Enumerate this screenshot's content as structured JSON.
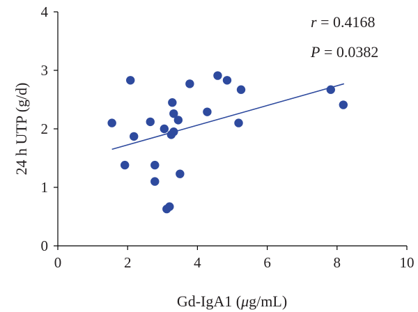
{
  "chart_data": {
    "type": "scatter",
    "xlabel_main": "Gd-IgA1 (",
    "xlabel_mu": "μ",
    "xlabel_rest": "g/mL)",
    "ylabel": "24 h UTP (g/d)",
    "xlim": [
      0,
      10
    ],
    "ylim": [
      0,
      4
    ],
    "xticks": [
      "0",
      "2",
      "4",
      "6",
      "8",
      "10"
    ],
    "yticks": [
      "0",
      "1",
      "2",
      "3",
      "4"
    ],
    "grid": false,
    "annotations": {
      "r_label": "r",
      "r_value": " = 0.4168",
      "p_label": "P",
      "p_value": " = 0.0382"
    },
    "points": [
      {
        "x": 1.55,
        "y": 2.1
      },
      {
        "x": 1.92,
        "y": 1.38
      },
      {
        "x": 2.08,
        "y": 2.83
      },
      {
        "x": 2.18,
        "y": 1.87
      },
      {
        "x": 2.65,
        "y": 2.12
      },
      {
        "x": 2.78,
        "y": 1.38
      },
      {
        "x": 2.78,
        "y": 1.1
      },
      {
        "x": 3.05,
        "y": 2.0
      },
      {
        "x": 3.12,
        "y": 0.63
      },
      {
        "x": 3.2,
        "y": 0.67
      },
      {
        "x": 3.25,
        "y": 1.9
      },
      {
        "x": 3.28,
        "y": 2.45
      },
      {
        "x": 3.32,
        "y": 1.95
      },
      {
        "x": 3.32,
        "y": 2.26
      },
      {
        "x": 3.45,
        "y": 2.15
      },
      {
        "x": 3.5,
        "y": 1.23
      },
      {
        "x": 3.78,
        "y": 2.77
      },
      {
        "x": 4.28,
        "y": 2.29
      },
      {
        "x": 4.58,
        "y": 2.91
      },
      {
        "x": 4.85,
        "y": 2.83
      },
      {
        "x": 5.18,
        "y": 2.1
      },
      {
        "x": 5.25,
        "y": 2.67
      },
      {
        "x": 7.82,
        "y": 2.67
      },
      {
        "x": 8.18,
        "y": 2.41
      }
    ],
    "trendline": {
      "x": [
        1.55,
        8.2
      ],
      "y": [
        1.65,
        2.77
      ]
    },
    "colors": {
      "points": "#2e4a9e",
      "trend": "#2e4a9e",
      "axes": "#000000"
    }
  }
}
